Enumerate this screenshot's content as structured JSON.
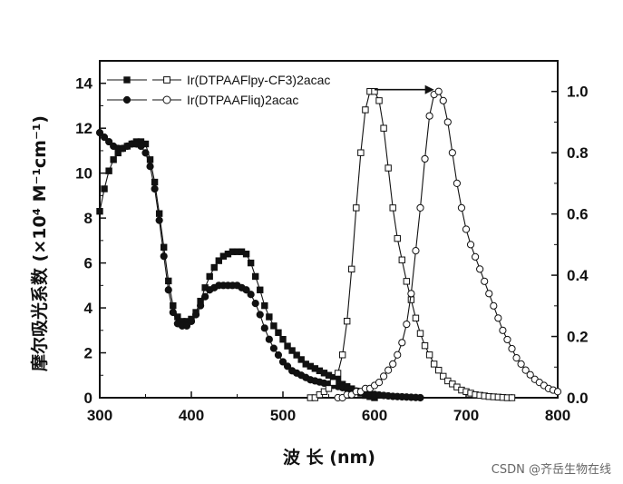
{
  "chart_data": {
    "type": "line",
    "xlabel": "波 长 (nm)",
    "ylabel_left": "摩尔吸光系数 (×10⁴ M⁻¹cm⁻¹)",
    "ylabel_right": "",
    "xlim": [
      300,
      800
    ],
    "ylim_left": [
      0,
      15
    ],
    "ylim_right": [
      0,
      1.1
    ],
    "x_ticks": [
      300,
      400,
      500,
      600,
      700,
      800
    ],
    "y_ticks_left": [
      0,
      2,
      4,
      6,
      8,
      10,
      12,
      14
    ],
    "y_ticks_right": [
      0.0,
      0.2,
      0.4,
      0.6,
      0.8,
      1.0
    ],
    "legend_position": "top-left",
    "series": [
      {
        "name": "Ir(DTPAAFlpy-CF3)2acac",
        "axis": "left",
        "kind": "absorption",
        "marker": "filled-square",
        "x": [
          300,
          305,
          310,
          315,
          320,
          325,
          330,
          335,
          340,
          345,
          350,
          355,
          360,
          365,
          370,
          375,
          380,
          385,
          390,
          395,
          400,
          405,
          410,
          415,
          420,
          425,
          430,
          435,
          440,
          445,
          450,
          455,
          460,
          465,
          470,
          475,
          480,
          485,
          490,
          495,
          500,
          505,
          510,
          515,
          520,
          525,
          530,
          535,
          540,
          545,
          550,
          555,
          560,
          565,
          570,
          575,
          580,
          585,
          590,
          595,
          600
        ],
        "values": [
          8.3,
          9.3,
          10.1,
          10.6,
          10.9,
          11.1,
          11.2,
          11.3,
          11.4,
          11.4,
          11.3,
          10.6,
          9.6,
          8.2,
          6.7,
          5.2,
          4.1,
          3.6,
          3.4,
          3.4,
          3.5,
          3.8,
          4.3,
          4.9,
          5.4,
          5.8,
          6.1,
          6.3,
          6.4,
          6.5,
          6.5,
          6.5,
          6.4,
          6.0,
          5.4,
          4.8,
          4.1,
          3.6,
          3.2,
          2.9,
          2.6,
          2.3,
          2.1,
          1.9,
          1.7,
          1.5,
          1.4,
          1.3,
          1.2,
          1.1,
          1.0,
          0.9,
          0.8,
          0.6,
          0.5,
          0.4,
          0.3,
          0.2,
          0.1,
          0.05,
          0.0
        ]
      },
      {
        "name": "Ir(DTPAAFliq)2acac",
        "axis": "left",
        "kind": "absorption",
        "marker": "filled-circle",
        "x": [
          300,
          305,
          310,
          315,
          320,
          325,
          330,
          335,
          340,
          345,
          350,
          355,
          360,
          365,
          370,
          375,
          380,
          385,
          390,
          395,
          400,
          405,
          410,
          415,
          420,
          425,
          430,
          435,
          440,
          445,
          450,
          455,
          460,
          465,
          470,
          475,
          480,
          485,
          490,
          495,
          500,
          505,
          510,
          515,
          520,
          525,
          530,
          535,
          540,
          545,
          550,
          555,
          560,
          565,
          570,
          575,
          580,
          585,
          590,
          595,
          600,
          605,
          610,
          615,
          620,
          625,
          630,
          635,
          640,
          645,
          650
        ],
        "values": [
          11.8,
          11.6,
          11.4,
          11.2,
          11.1,
          11.1,
          11.2,
          11.3,
          11.3,
          11.2,
          10.9,
          10.3,
          9.3,
          7.9,
          6.3,
          4.8,
          3.8,
          3.3,
          3.2,
          3.2,
          3.4,
          3.7,
          4.1,
          4.5,
          4.8,
          4.9,
          5.0,
          5.0,
          5.0,
          5.0,
          5.0,
          4.9,
          4.8,
          4.6,
          4.2,
          3.7,
          3.1,
          2.6,
          2.2,
          1.9,
          1.6,
          1.4,
          1.2,
          1.1,
          1.0,
          0.9,
          0.8,
          0.75,
          0.7,
          0.65,
          0.6,
          0.55,
          0.5,
          0.45,
          0.4,
          0.35,
          0.3,
          0.25,
          0.2,
          0.17,
          0.15,
          0.12,
          0.1,
          0.08,
          0.06,
          0.05,
          0.04,
          0.03,
          0.02,
          0.01,
          0.0
        ]
      },
      {
        "name": "Ir(DTPAAFlpy-CF3)2acac",
        "axis": "right",
        "kind": "emission",
        "marker": "open-square",
        "x": [
          530,
          535,
          540,
          545,
          550,
          555,
          560,
          565,
          570,
          575,
          580,
          585,
          590,
          595,
          600,
          605,
          610,
          615,
          620,
          625,
          630,
          635,
          640,
          645,
          650,
          655,
          660,
          665,
          670,
          675,
          680,
          685,
          690,
          695,
          700,
          705,
          710,
          715,
          720,
          725,
          730,
          735,
          740,
          745,
          750
        ],
        "values": [
          0.0,
          0.0,
          0.01,
          0.02,
          0.03,
          0.05,
          0.08,
          0.14,
          0.25,
          0.42,
          0.62,
          0.8,
          0.94,
          1.0,
          1.0,
          0.97,
          0.88,
          0.75,
          0.62,
          0.52,
          0.45,
          0.38,
          0.32,
          0.26,
          0.21,
          0.17,
          0.14,
          0.11,
          0.09,
          0.07,
          0.055,
          0.045,
          0.035,
          0.025,
          0.02,
          0.015,
          0.01,
          0.008,
          0.006,
          0.004,
          0.003,
          0.002,
          0.001,
          0.0,
          0.0
        ]
      },
      {
        "name": "Ir(DTPAAFliq)2acac",
        "axis": "right",
        "kind": "emission",
        "marker": "open-circle",
        "x": [
          560,
          565,
          570,
          575,
          580,
          585,
          590,
          595,
          600,
          605,
          610,
          615,
          620,
          625,
          630,
          635,
          640,
          645,
          650,
          655,
          660,
          665,
          670,
          675,
          680,
          685,
          690,
          695,
          700,
          705,
          710,
          715,
          720,
          725,
          730,
          735,
          740,
          745,
          750,
          755,
          760,
          765,
          770,
          775,
          780,
          785,
          790,
          795,
          800
        ],
        "values": [
          0.0,
          0.0,
          0.01,
          0.01,
          0.02,
          0.02,
          0.03,
          0.03,
          0.04,
          0.05,
          0.07,
          0.09,
          0.11,
          0.14,
          0.18,
          0.24,
          0.34,
          0.48,
          0.62,
          0.78,
          0.92,
          0.99,
          1.0,
          0.97,
          0.9,
          0.8,
          0.7,
          0.62,
          0.55,
          0.5,
          0.46,
          0.42,
          0.38,
          0.34,
          0.3,
          0.26,
          0.22,
          0.19,
          0.16,
          0.13,
          0.11,
          0.09,
          0.075,
          0.06,
          0.05,
          0.04,
          0.03,
          0.025,
          0.02
        ]
      }
    ],
    "annotation": {
      "type": "arrow",
      "from": {
        "x": 600,
        "y": 1.0
      },
      "to": {
        "x": 665,
        "y": 1.0
      },
      "axis": "right"
    }
  },
  "watermark": "CSDN @齐岳生物在线",
  "colors": {
    "ink": "#111111",
    "background": "#ffffff"
  }
}
